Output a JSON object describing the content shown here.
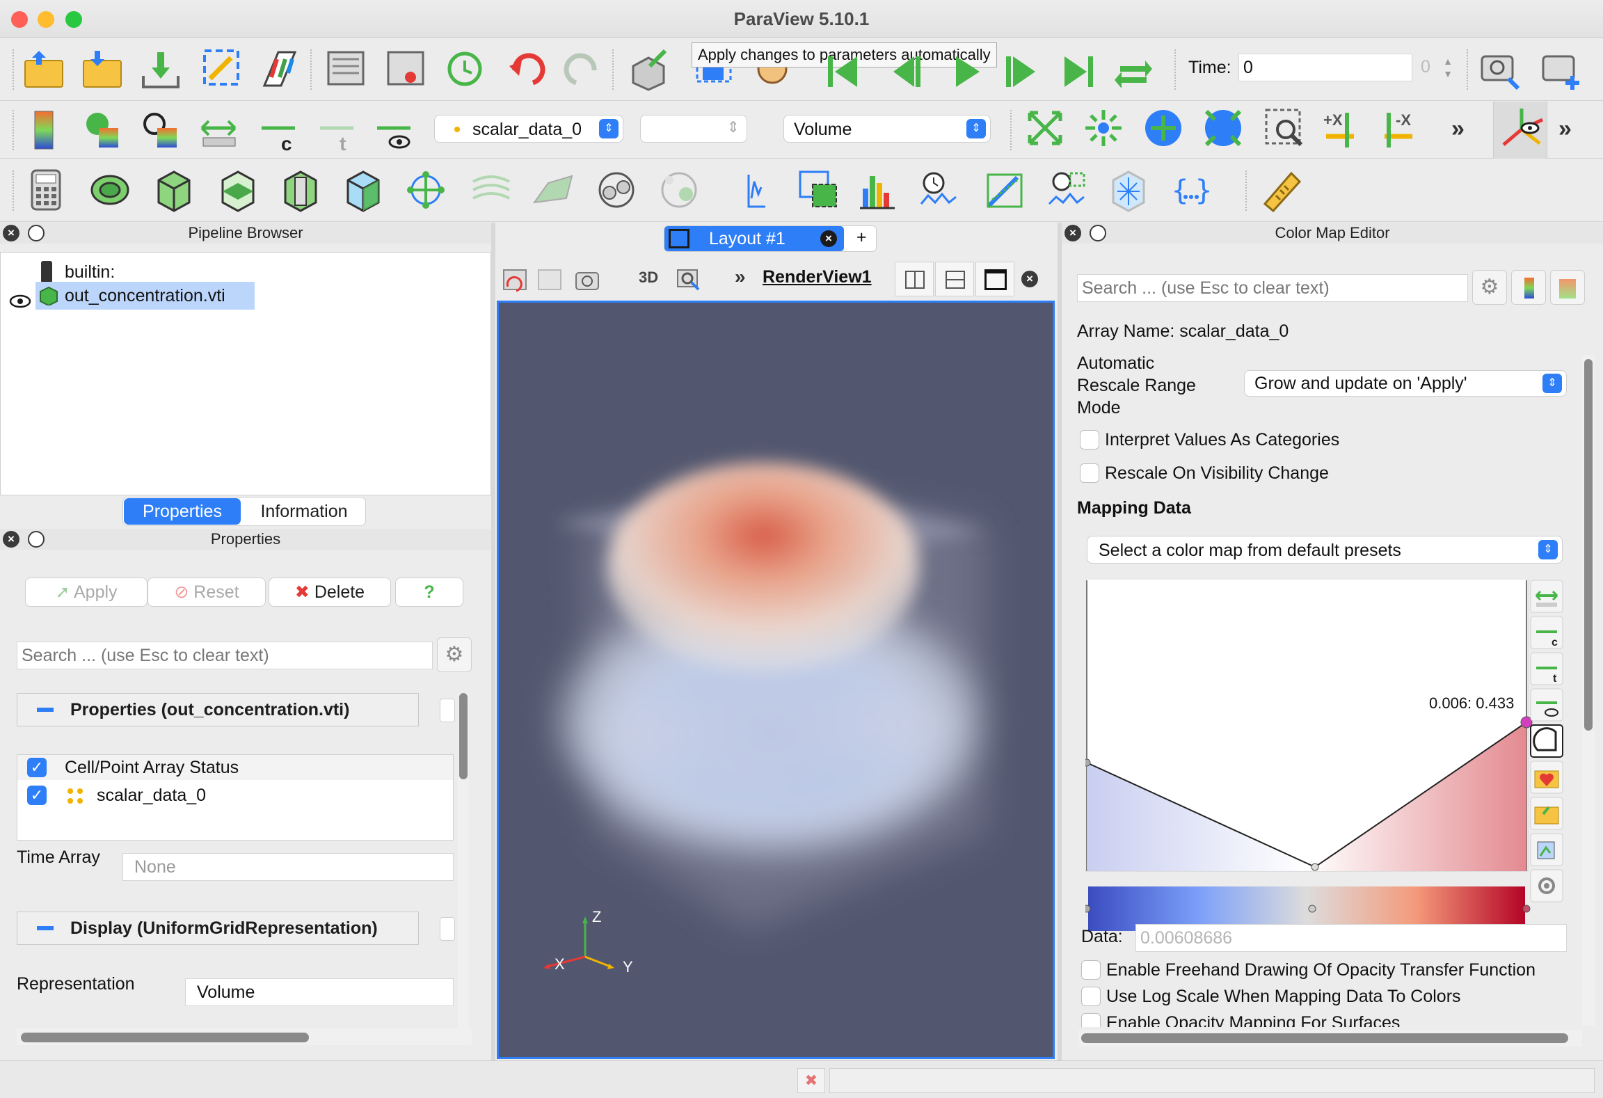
{
  "window": {
    "title": "ParaView 5.10.1"
  },
  "tooltip": "Apply changes to parameters automatically",
  "toolbar1": {
    "time_label": "Time:",
    "time_value": "0",
    "time_index": "0"
  },
  "toolbar2": {
    "array_select": "scalar_data_0",
    "component_select": "",
    "representation_select": "Volume",
    "more": "»"
  },
  "pipeline": {
    "panel_title": "Pipeline Browser",
    "items": [
      {
        "label": "builtin:"
      },
      {
        "label": "out_concentration.vti"
      }
    ]
  },
  "tabs": {
    "properties": "Properties",
    "information": "Information"
  },
  "properties": {
    "panel_title": "Properties",
    "apply": "Apply",
    "reset": "Reset",
    "delete": "Delete",
    "help": "?",
    "search_placeholder": "Search ... (use Esc to clear text)",
    "section_props": "Properties (out_concentration.vti)",
    "array_status_header": "Cell/Point Array Status",
    "array_item": "scalar_data_0",
    "time_array_label": "Time Array",
    "time_array_value": "None",
    "section_display": "Display (UniformGridRepresentation)",
    "representation_label": "Representation",
    "representation_value": "Volume"
  },
  "layout": {
    "tab_label": "Layout #1",
    "add_tab": "+",
    "mode_3d": "3D",
    "view_name": "RenderView1",
    "axes": {
      "z": "Z",
      "x": "X",
      "y": "Y"
    }
  },
  "colormap": {
    "panel_title": "Color Map Editor",
    "search_placeholder": "Search ... (use Esc to clear text)",
    "array_name": "Array Name: scalar_data_0",
    "rescale_label": "Automatic Rescale Range Mode",
    "rescale_value": "Grow and update on 'Apply'",
    "interpret_categories": "Interpret Values As Categories",
    "rescale_visibility": "Rescale On Visibility Change",
    "mapping_header": "Mapping Data",
    "preset_select": "Select a color map from default presets",
    "point_readout": "0.006: 0.433",
    "data_label": "Data:",
    "data_value": "0.00608686",
    "freehand": "Enable Freehand Drawing Of Opacity Transfer Function",
    "log_scale": "Use Log Scale When Mapping Data To Colors",
    "opacity_surfaces": "Enable Opacity Mapping For Surfaces"
  },
  "colors": {
    "accent": "#2d7ef7",
    "render_bg": "#52576f",
    "cmap_low": "#3b4cc0",
    "cmap_high": "#b40426"
  }
}
